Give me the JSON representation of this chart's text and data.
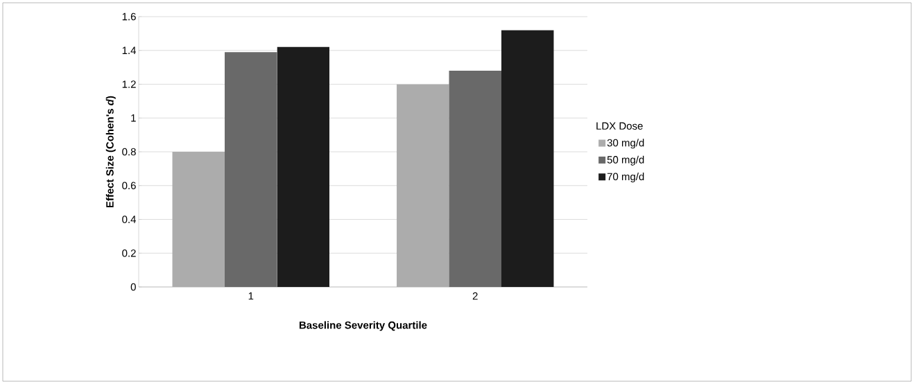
{
  "chart_data": {
    "type": "bar",
    "xlabel": "Baseline Severity Quartile",
    "ylabel": "Effect Size (Cohen's *d*)",
    "legend_title": "LDX Dose",
    "categories": [
      "1",
      "2"
    ],
    "series": [
      {
        "name": "30 mg/d",
        "color": "#acacac",
        "values": [
          0.8,
          1.2
        ]
      },
      {
        "name": "50 mg/d",
        "color": "#696969",
        "values": [
          1.39,
          1.28
        ]
      },
      {
        "name": "70 mg/d",
        "color": "#1c1c1c",
        "values": [
          1.42,
          1.52
        ]
      }
    ],
    "ylim": [
      0,
      1.6
    ],
    "yticks": [
      0,
      0.2,
      0.4,
      0.6,
      0.8,
      1,
      1.2,
      1.4,
      1.6
    ],
    "grid": "y",
    "legend": "right"
  }
}
